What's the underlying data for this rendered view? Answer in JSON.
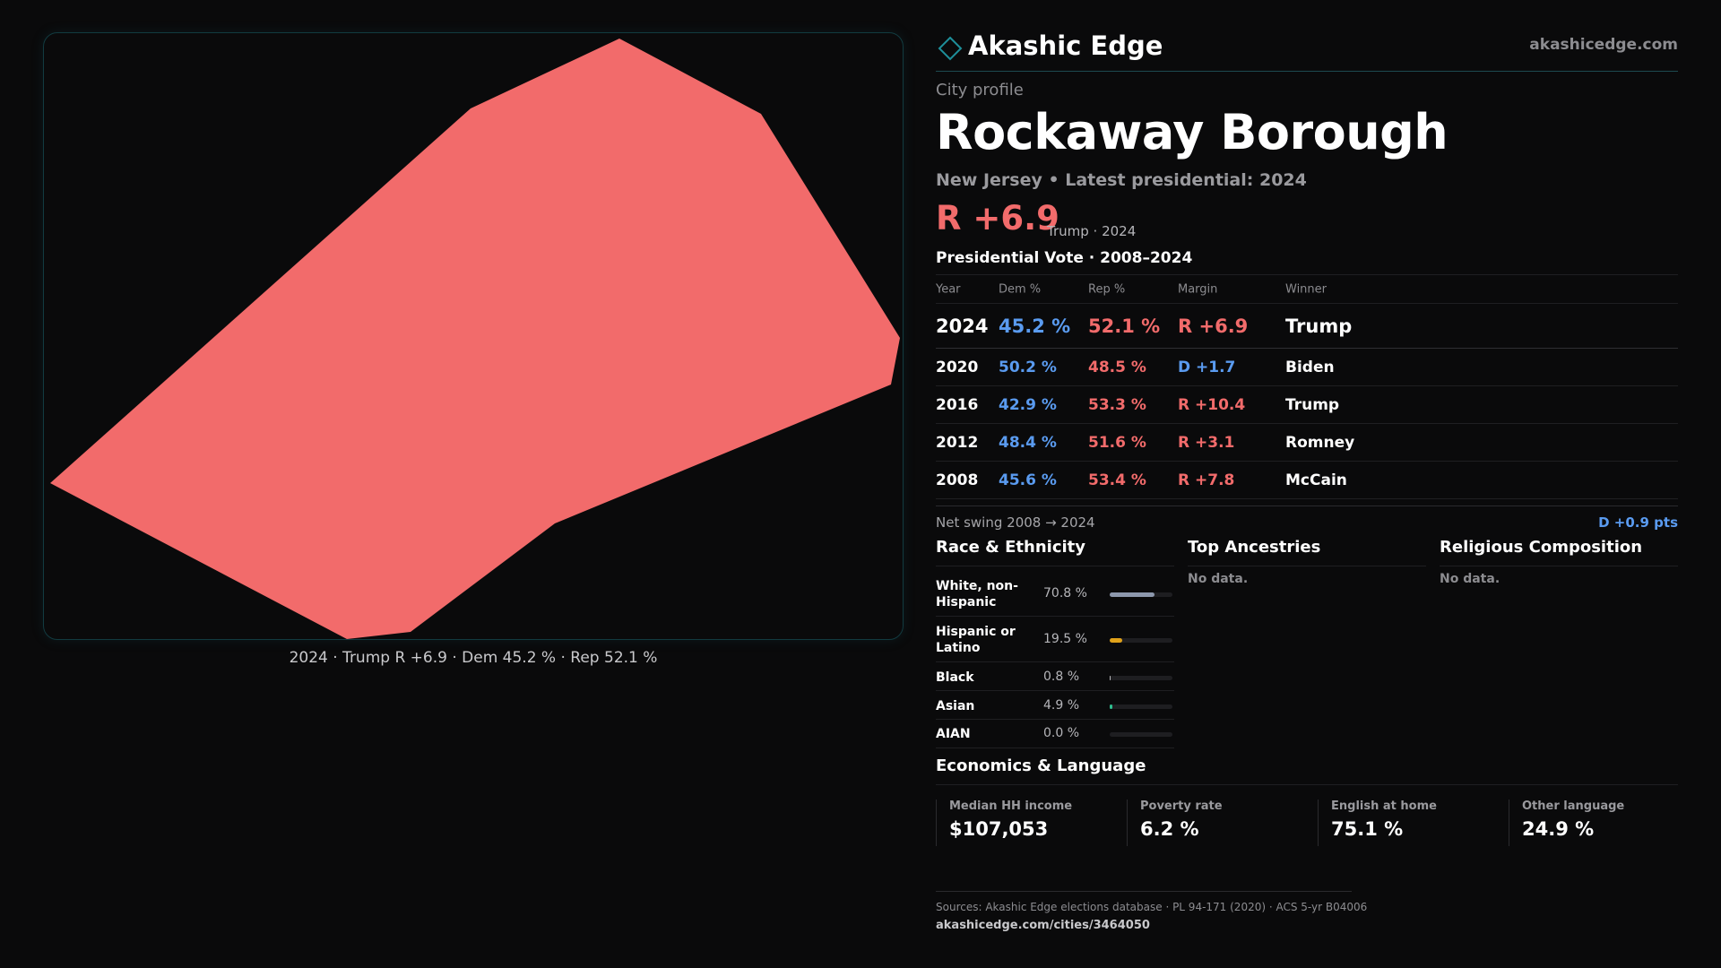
{
  "brand": {
    "name": "Akashic Edge",
    "url": "akashicedge.com"
  },
  "map": {
    "fill_color": "#f26b6b",
    "caption": "2024 · Trump R +6.9 · Dem 45.2 % · Rep 52.1 %"
  },
  "profile": {
    "kicker": "City profile",
    "title": "Rockaway Borough",
    "subtitle": "New Jersey • Latest presidential: 2024",
    "headline_margin": "R +6.9",
    "headline_note": "Trump · 2024"
  },
  "vote": {
    "title": "Presidential Vote · 2008–2024",
    "columns": [
      "Year",
      "Dem %",
      "Rep %",
      "Margin",
      "Winner"
    ],
    "rows": [
      {
        "year": "2024",
        "dem": "45.2 %",
        "rep": "52.1 %",
        "margin": "R +6.9",
        "winner": "Trump"
      },
      {
        "year": "2020",
        "dem": "50.2 %",
        "rep": "48.5 %",
        "margin": "D +1.7",
        "winner": "Biden"
      },
      {
        "year": "2016",
        "dem": "42.9 %",
        "rep": "53.3 %",
        "margin": "R +10.4",
        "winner": "Trump"
      },
      {
        "year": "2012",
        "dem": "48.4 %",
        "rep": "51.6 %",
        "margin": "R +3.1",
        "winner": "Romney"
      },
      {
        "year": "2008",
        "dem": "45.6 %",
        "rep": "53.4 %",
        "margin": "R +7.8",
        "winner": "McCain"
      }
    ],
    "swing_label": "Net swing 2008 → 2024",
    "swing_value": "D +0.9 pts"
  },
  "race": {
    "title": "Race & Ethnicity",
    "rows": [
      {
        "label": "White, non-Hispanic",
        "pct": "70.8 %",
        "value": 70.8,
        "color": "#8d98ad"
      },
      {
        "label": "Hispanic or Latino",
        "pct": "19.5 %",
        "value": 19.5,
        "color": "#e0a21a"
      },
      {
        "label": "Black",
        "pct": "0.8 %",
        "value": 0.8,
        "color": "#b5b5b9"
      },
      {
        "label": "Asian",
        "pct": "4.9 %",
        "value": 4.9,
        "color": "#2fbf8f"
      },
      {
        "label": "AIAN",
        "pct": "0.0 %",
        "value": 0.0,
        "color": "#b5b5b9"
      }
    ]
  },
  "ancestries": {
    "title": "Top Ancestries",
    "empty": "No data."
  },
  "religion": {
    "title": "Religious Composition",
    "empty": "No data."
  },
  "economics": {
    "title": "Economics & Language",
    "stats": [
      {
        "label": "Median HH income",
        "value": "$107,053"
      },
      {
        "label": "Poverty rate",
        "value": "6.2 %"
      },
      {
        "label": "English at home",
        "value": "75.1 %"
      },
      {
        "label": "Other language",
        "value": "24.9 %"
      }
    ]
  },
  "footer": {
    "sources": "Sources: Akashic Edge elections database · PL 94-171 (2020) · ACS 5-yr B04006",
    "url": "akashicedge.com/cities/3464050"
  }
}
